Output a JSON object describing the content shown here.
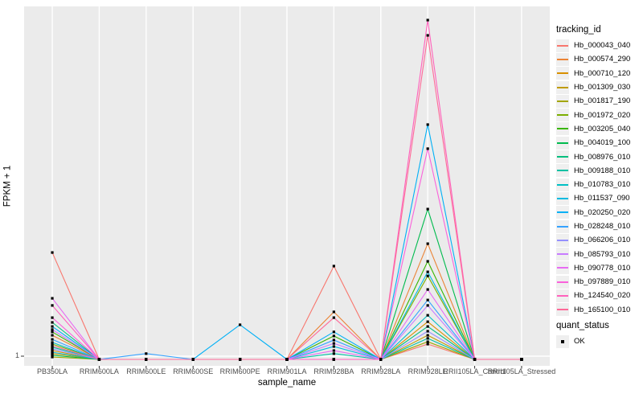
{
  "chart_data": {
    "type": "line",
    "title": "",
    "xlabel": "sample_name",
    "ylabel": "FPKM + 1",
    "y_tick_labels": [
      "1"
    ],
    "legend_title": "tracking_id",
    "legend_position": "right",
    "panel_background": "#EBEBEB",
    "gridline_color": "#FFFFFF",
    "point_color": "#000000",
    "values_note": "relative heights 0-1 estimated from pixels; only y tick shown is 1 (baseline)",
    "categories": [
      "PB350LA",
      "RRIM600LA",
      "RRIM600LE",
      "RRIM600SE",
      "RRIM600PE",
      "RRIM901LA",
      "RRIM928BA",
      "RRIM928LA",
      "RRIM928LE",
      "RRII105LA_Control",
      "RRII105LA_Stressed"
    ],
    "series": [
      {
        "name": "Hb_000043_040",
        "color": "#F8766D",
        "values": [
          0.315,
          0,
          0,
          0,
          0,
          0,
          0.275,
          0,
          0.045,
          0,
          0
        ]
      },
      {
        "name": "Hb_000574_290",
        "color": "#EB8335",
        "values": [
          0.071,
          0,
          0,
          0,
          0,
          0,
          0.14,
          0,
          0.341,
          0,
          0
        ]
      },
      {
        "name": "Hb_000710_120",
        "color": "#D89000",
        "values": [
          0.026,
          0,
          0,
          0,
          0,
          0,
          0,
          0,
          0.111,
          0,
          0
        ]
      },
      {
        "name": "Hb_001309_030",
        "color": "#C09B00",
        "values": [
          0.017,
          0,
          0,
          0,
          0,
          0,
          0,
          0,
          0.071,
          0,
          0
        ]
      },
      {
        "name": "Hb_001817_190",
        "color": "#A3A500",
        "values": [
          0.007,
          0,
          0,
          0,
          0,
          0,
          0,
          0,
          0.052,
          0,
          0
        ]
      },
      {
        "name": "Hb_001972_020",
        "color": "#7CAE00",
        "values": [
          0.045,
          0,
          0,
          0,
          0,
          0,
          0,
          0,
          0.246,
          0,
          0
        ]
      },
      {
        "name": "Hb_003205_040",
        "color": "#39B600",
        "values": [
          0.081,
          0,
          0,
          0,
          0,
          0,
          0.069,
          0,
          0.289,
          0,
          0
        ]
      },
      {
        "name": "Hb_004019_100",
        "color": "#00BB4E",
        "values": [
          0.012,
          0,
          0,
          0,
          0,
          0,
          0,
          0,
          0.443,
          0,
          0
        ]
      },
      {
        "name": "Hb_008976_010",
        "color": "#00BF7D",
        "values": [
          0.109,
          0,
          0,
          0,
          0,
          0,
          0,
          0,
          0.097,
          0,
          0
        ]
      },
      {
        "name": "Hb_009188_010",
        "color": "#00C1A3",
        "values": [
          0.036,
          0,
          0,
          0,
          0,
          0,
          0.017,
          0,
          0.062,
          0,
          0
        ]
      },
      {
        "name": "Hb_010783_010",
        "color": "#00BFC4",
        "values": [
          0.05,
          0,
          0,
          0,
          0,
          0,
          0,
          0,
          0.13,
          0,
          0
        ]
      },
      {
        "name": "Hb_011537_090",
        "color": "#00BAE0",
        "values": [
          0.021,
          0,
          0,
          0,
          0,
          0,
          0.038,
          0,
          0.258,
          0,
          0
        ]
      },
      {
        "name": "Hb_020250_020",
        "color": "#00B0F6",
        "values": [
          0.097,
          0,
          0,
          0,
          0.102,
          0,
          0.081,
          0,
          0.692,
          0,
          0
        ]
      },
      {
        "name": "Hb_028248_010",
        "color": "#35A2FF",
        "values": [
          0.059,
          0,
          0.017,
          0,
          0,
          0,
          0.057,
          0,
          0.175,
          0,
          0
        ]
      },
      {
        "name": "Hb_066206_010",
        "color": "#9590FF",
        "values": [
          0.031,
          0,
          0,
          0,
          0,
          0,
          0,
          0,
          0.083,
          0,
          0
        ]
      },
      {
        "name": "Hb_085793_010",
        "color": "#C77CFF",
        "values": [
          0.088,
          0,
          0,
          0,
          0,
          0,
          0.047,
          0,
          0.159,
          0,
          0
        ]
      },
      {
        "name": "Hb_090778_010",
        "color": "#E76BF3",
        "values": [
          0.18,
          0,
          0,
          0,
          0,
          0,
          0.026,
          0,
          0.206,
          0,
          0
        ]
      },
      {
        "name": "Hb_097889_010",
        "color": "#FA62DB",
        "values": [
          0.123,
          0,
          0,
          0,
          0,
          0,
          0,
          0,
          0.621,
          0,
          0
        ]
      },
      {
        "name": "Hb_124540_020",
        "color": "#FF62BC",
        "values": [
          0.159,
          0,
          0,
          0,
          0,
          0,
          0,
          0,
          1.0,
          0,
          0
        ]
      },
      {
        "name": "Hb_165100_010",
        "color": "#FF6A98",
        "values": [
          0.04,
          0,
          0,
          0,
          0,
          0,
          0.123,
          0,
          0.955,
          0,
          0
        ]
      }
    ],
    "quant_status": {
      "title": "quant_status",
      "items": [
        "OK"
      ]
    }
  }
}
